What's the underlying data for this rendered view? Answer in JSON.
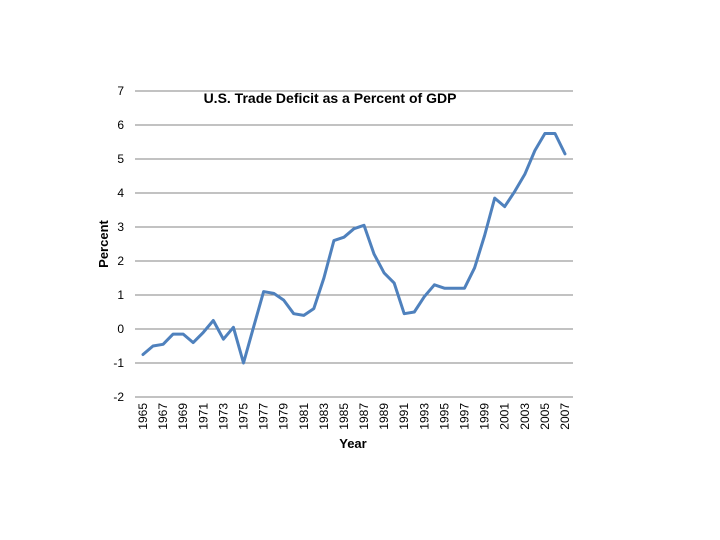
{
  "chart_data": {
    "type": "line",
    "title": "U.S. Trade Deficit as a Percent of GDP",
    "xlabel": "Year",
    "ylabel": "Percent",
    "ylim": [
      -2,
      7
    ],
    "y_ticks": [
      -2,
      -1,
      0,
      1,
      2,
      3,
      4,
      5,
      6,
      7
    ],
    "grid": true,
    "legend": "none",
    "x_tick_labels": [
      "1965",
      "1967",
      "1969",
      "1971",
      "1973",
      "1975",
      "1977",
      "1979",
      "1981",
      "1983",
      "1985",
      "1987",
      "1989",
      "1991",
      "1993",
      "1995",
      "1997",
      "1999",
      "2001",
      "2003",
      "2005",
      "2007"
    ],
    "x": [
      1965,
      1966,
      1967,
      1968,
      1969,
      1970,
      1971,
      1972,
      1973,
      1974,
      1975,
      1976,
      1977,
      1978,
      1979,
      1980,
      1981,
      1982,
      1983,
      1984,
      1985,
      1986,
      1987,
      1988,
      1989,
      1990,
      1991,
      1992,
      1993,
      1994,
      1995,
      1996,
      1997,
      1998,
      1999,
      2000,
      2001,
      2002,
      2003,
      2004,
      2005,
      2006,
      2007
    ],
    "series": [
      {
        "name": "Trade Deficit",
        "color": "#4F81BD",
        "values": [
          -0.75,
          -0.5,
          -0.45,
          -0.15,
          -0.15,
          -0.4,
          -0.1,
          0.25,
          -0.3,
          0.05,
          -1.0,
          0.05,
          1.1,
          1.05,
          0.85,
          0.45,
          0.4,
          0.6,
          1.5,
          2.6,
          2.7,
          2.95,
          3.05,
          2.2,
          1.65,
          1.35,
          0.45,
          0.5,
          0.95,
          1.3,
          1.2,
          1.2,
          1.2,
          1.8,
          2.75,
          3.85,
          3.6,
          4.05,
          4.55,
          5.25,
          5.75,
          5.75,
          5.15
        ]
      }
    ]
  }
}
